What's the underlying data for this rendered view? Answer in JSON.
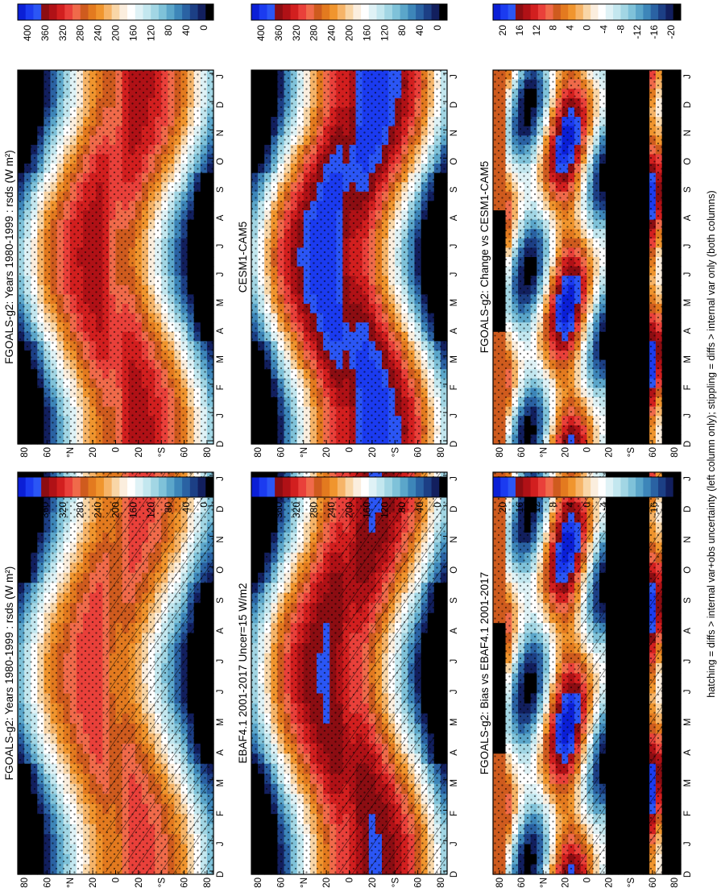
{
  "footnote": "hatching = diffs > internal var+obs uncertainty (left column only); stippling = diffs > internal var only (both columns)",
  "colorbars": {
    "absolute": {
      "labels": [
        "400",
        "360",
        "320",
        "280",
        "240",
        "200",
        "160",
        "120",
        "80",
        "40",
        "0"
      ],
      "colors": [
        "#0b1fd6",
        "#1b3bf0",
        "#2b56f5",
        "#8c0d12",
        "#b01116",
        "#d21f1f",
        "#e9403a",
        "#f06a4a",
        "#cf5b1e",
        "#e37a1f",
        "#f0952e",
        "#f6b468",
        "#f9d6a7",
        "#fbeede",
        "#ffffff",
        "#dff2f6",
        "#c3e7ef",
        "#a2d6e4",
        "#7fc2d9",
        "#5ba6ca",
        "#3d86b9",
        "#2a62a3",
        "#1c3f85",
        "#121f5e",
        "#000000"
      ]
    },
    "difference": {
      "labels": [
        "20",
        "16",
        "12",
        "8",
        "4",
        "0",
        "-4",
        "-8",
        "-12",
        "-16",
        "-20"
      ],
      "colors": [
        "#0b1fd6",
        "#1b3bf0",
        "#2b56f5",
        "#8c0d12",
        "#b01116",
        "#d21f1f",
        "#e9403a",
        "#f06a4a",
        "#cf5b1e",
        "#e37a1f",
        "#f0952e",
        "#f6b468",
        "#f9d6a7",
        "#fbeede",
        "#ffffff",
        "#dff2f6",
        "#c3e7ef",
        "#a2d6e4",
        "#7fc2d9",
        "#5ba6ca",
        "#3d86b9",
        "#2a62a3",
        "#1c3f85",
        "#121f5e",
        "#000000"
      ]
    }
  },
  "chart_data": [
    {
      "type": "heatmap",
      "title": "FGOALS-g2: Years 1980-1999 : rsds (W m²)",
      "x_ticks": [
        "D",
        "J",
        "F",
        "M",
        "A",
        "M",
        "J",
        "J",
        "A",
        "S",
        "O",
        "N",
        "D",
        "J"
      ],
      "y_ticks": [
        "80",
        "60",
        "°N",
        "20",
        "0",
        "20",
        "°S",
        "60",
        "80"
      ],
      "colorbar": "absolute",
      "stippling": true,
      "hatching": true
    },
    {
      "type": "heatmap",
      "title": "FGOALS-g2: Years 1980-1999 : rsds (W m²)",
      "x_ticks": [
        "D",
        "J",
        "F",
        "M",
        "A",
        "M",
        "J",
        "J",
        "A",
        "S",
        "O",
        "N",
        "D",
        "J"
      ],
      "y_ticks": [
        "80",
        "60",
        "°N",
        "20",
        "0",
        "20",
        "°S",
        "60",
        "80"
      ],
      "colorbar": "absolute",
      "stippling": true,
      "hatching": false
    },
    {
      "type": "heatmap",
      "title": "EBAF4.1 2001-2017 Uncer=15 W/m2",
      "x_ticks": [
        "D",
        "J",
        "F",
        "M",
        "A",
        "M",
        "J",
        "J",
        "A",
        "S",
        "O",
        "N",
        "D",
        "J"
      ],
      "y_ticks": [
        "80",
        "60",
        "°N",
        "20",
        "0",
        "20",
        "°S",
        "60",
        "80"
      ],
      "colorbar": "absolute",
      "stippling": true,
      "hatching": true
    },
    {
      "type": "heatmap",
      "title": "CESM1-CAM5",
      "x_ticks": [
        "D",
        "J",
        "F",
        "M",
        "A",
        "M",
        "J",
        "J",
        "A",
        "S",
        "O",
        "N",
        "D",
        "J"
      ],
      "y_ticks": [
        "80",
        "60",
        "°N",
        "20",
        "0",
        "20",
        "°S",
        "60",
        "80"
      ],
      "colorbar": "absolute",
      "stippling": true,
      "hatching": false
    },
    {
      "type": "heatmap",
      "title": "FGOALS-g2: Bias vs EBAF4.1 2001-2017",
      "x_ticks": [
        "D",
        "J",
        "F",
        "M",
        "A",
        "M",
        "J",
        "J",
        "A",
        "S",
        "O",
        "N",
        "D",
        "J"
      ],
      "y_ticks": [
        "80",
        "60",
        "°N",
        "20",
        "0",
        "20",
        "°S",
        "60",
        "80"
      ],
      "colorbar": "difference",
      "stippling": true,
      "hatching": true
    },
    {
      "type": "heatmap",
      "title": "FGOALS-g2: Change vs CESM1-CAM5",
      "x_ticks": [
        "D",
        "J",
        "F",
        "M",
        "A",
        "M",
        "J",
        "J",
        "A",
        "S",
        "O",
        "N",
        "D",
        "J"
      ],
      "y_ticks": [
        "80",
        "60",
        "°N",
        "20",
        "0",
        "20",
        "°S",
        "60",
        "80"
      ],
      "colorbar": "difference",
      "stippling": true,
      "hatching": false
    }
  ]
}
